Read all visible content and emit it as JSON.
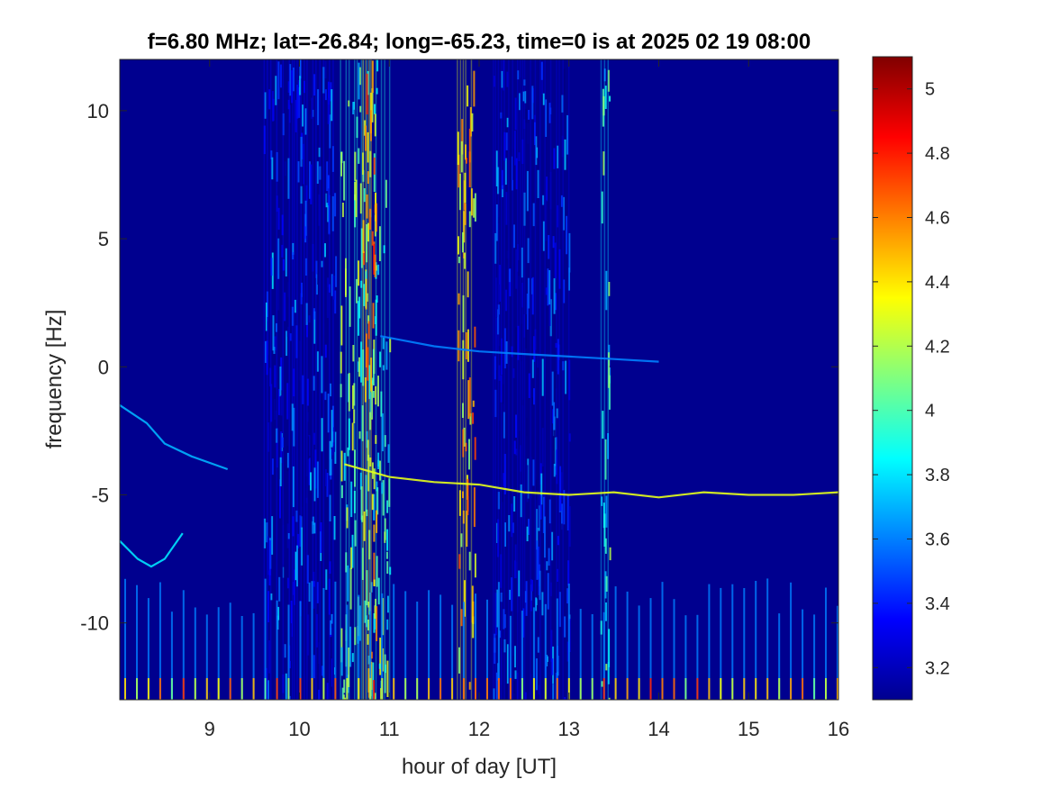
{
  "chart_data": {
    "type": "heatmap",
    "title": "f=6.80 MHz;  lat=-26.84; long=-65.23, time=0 is at 2025 02 19 08:00",
    "xlabel": "hour of day [UT]",
    "ylabel": "frequency [Hz]",
    "xlim": [
      8,
      16
    ],
    "ylim": [
      -13,
      12
    ],
    "xticks": [
      9,
      10,
      11,
      12,
      13,
      14,
      15,
      16
    ],
    "yticks": [
      10,
      5,
      0,
      -5,
      -10
    ],
    "colormap": "jet",
    "clim": [
      3.1,
      5.1
    ],
    "colorbar_ticks": [
      5,
      4.8,
      4.6,
      4.4,
      4.2,
      4,
      3.8,
      3.6,
      3.4,
      3.2
    ],
    "background_level": 3.15,
    "broadband_bands": [
      {
        "x_start": 9.6,
        "x_end": 10.4,
        "level": 3.45
      },
      {
        "x_start": 10.45,
        "x_end": 11.0,
        "level": 4.0
      },
      {
        "x_start": 10.7,
        "x_end": 10.85,
        "level": 4.5
      },
      {
        "x_start": 11.75,
        "x_end": 11.95,
        "level": 4.4
      },
      {
        "x_start": 12.15,
        "x_end": 13.0,
        "level": 3.4
      },
      {
        "x_start": 13.35,
        "x_end": 13.45,
        "level": 3.9
      }
    ],
    "doppler_traces": [
      {
        "x": [
          8.0,
          8.3,
          8.5,
          8.8,
          9.2
        ],
        "y": [
          -1.5,
          -2.2,
          -3.0,
          -3.5,
          -4.0
        ],
        "level": 3.7
      },
      {
        "x": [
          8.0,
          8.2,
          8.35,
          8.5,
          8.7
        ],
        "y": [
          -6.8,
          -7.5,
          -7.8,
          -7.5,
          -6.5
        ],
        "level": 3.8
      },
      {
        "x": [
          10.5,
          11.0,
          11.5,
          12.0,
          12.5,
          13.0,
          13.5,
          14.0,
          14.5,
          15.0,
          15.5,
          16.0
        ],
        "y": [
          -3.8,
          -4.3,
          -4.5,
          -4.6,
          -4.9,
          -5.0,
          -4.9,
          -5.1,
          -4.9,
          -5.0,
          -5.0,
          -4.9
        ],
        "level": 4.3
      },
      {
        "x": [
          10.9,
          11.5,
          12.0,
          12.5,
          13.0,
          13.5,
          14.0
        ],
        "y": [
          1.2,
          0.8,
          0.6,
          0.5,
          0.4,
          0.3,
          0.2
        ],
        "level": 3.6
      }
    ],
    "low_freq_harmonics": {
      "y_top": -9.0,
      "y_bottom": -13.0,
      "spacing_hours": 0.13,
      "level": 4.0
    }
  }
}
